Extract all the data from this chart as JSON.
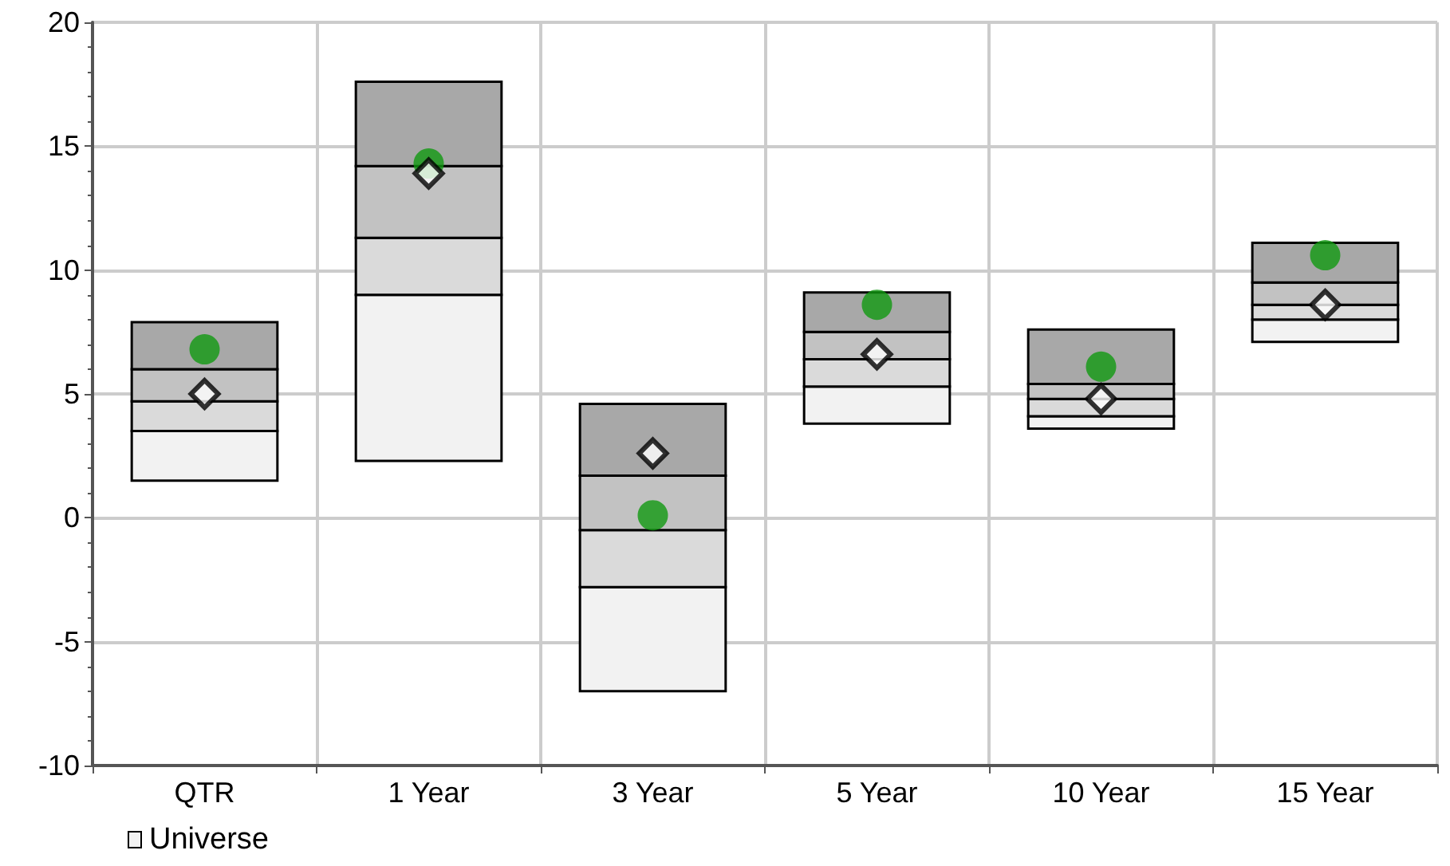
{
  "chart_data": {
    "type": "bar",
    "categories": [
      "QTR",
      "1 Year",
      "3 Year",
      "5 Year",
      "10 Year",
      "15 Year"
    ],
    "series": [
      {
        "name": "Universe",
        "color": "#f2f2f2",
        "base": [
          1.5,
          2.3,
          -7.0,
          3.8,
          3.6,
          7.1
        ],
        "values": [
          2.0,
          6.7,
          4.2,
          1.5,
          0.5,
          0.9
        ]
      },
      {
        "color": "#dadada",
        "base": [
          3.5,
          9.0,
          -2.8,
          5.3,
          4.1,
          8.0
        ],
        "values": [
          1.2,
          2.3,
          2.3,
          1.1,
          0.7,
          0.6
        ]
      },
      {
        "color": "#c2c2c2",
        "base": [
          4.7,
          11.3,
          -0.5,
          6.4,
          4.8,
          8.6
        ],
        "values": [
          1.3,
          2.9,
          2.2,
          1.1,
          0.6,
          0.9
        ]
      },
      {
        "color": "#a8a8a8",
        "base": [
          6.0,
          14.2,
          1.7,
          7.5,
          5.4,
          9.5
        ],
        "values": [
          1.9,
          3.4,
          2.9,
          1.6,
          2.2,
          1.6
        ]
      },
      {
        "type": "scatter",
        "marker": "circle",
        "color": "#109910",
        "x": [
          "QTR",
          "1 Year",
          "3 Year",
          "5 Year",
          "10 Year",
          "15 Year"
        ],
        "values": [
          6.8,
          14.3,
          0.1,
          8.6,
          6.1,
          10.6
        ]
      },
      {
        "type": "scatter",
        "marker": "diamond",
        "color": "#000000",
        "x": [
          "QTR",
          "1 Year",
          "3 Year",
          "5 Year",
          "10 Year",
          "15 Year"
        ],
        "values": [
          5.0,
          13.9,
          2.6,
          6.6,
          4.8,
          8.6
        ]
      }
    ],
    "ylim": [
      -10,
      20
    ],
    "yticks": [
      -10,
      -5,
      0,
      5,
      10,
      15,
      20
    ],
    "grid": true,
    "legend": "bottom"
  }
}
